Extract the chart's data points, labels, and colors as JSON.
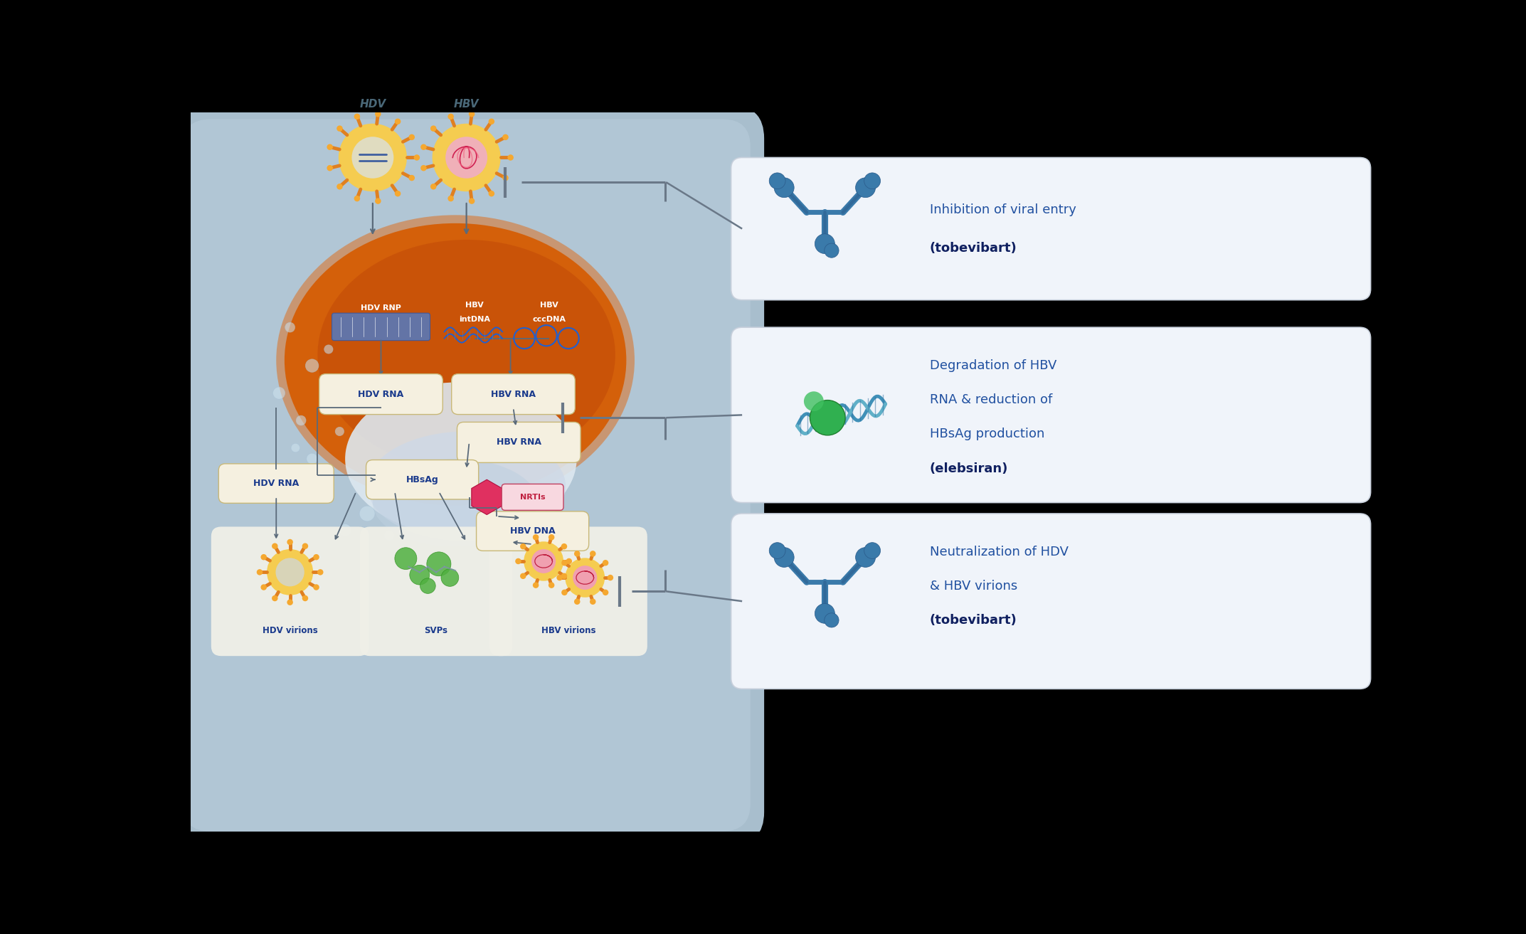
{
  "bg_color": "#000000",
  "cell_color": "#b8cfe0",
  "cell_inner_color": "#c5d8e8",
  "nucleus_color": "#d4600a",
  "nucleus_dark": "#c04808",
  "er_color": "#d8e8f0",
  "box_fill": "#f5f0e0",
  "box_edge": "#c8b878",
  "arrow_color": "#5a6a7a",
  "label_blue": "#1a3a8c",
  "label_gray": "#5a6880",
  "panel_fill": "#f0f4fa",
  "panel_edge": "#c8d0dc",
  "text_blue": "#2050a0",
  "text_bold_blue": "#102060",
  "hdv_label": "HDV",
  "hbv_label": "HBV",
  "hdv_rnp": "HDV RNP",
  "hbv_intdna_l1": "HBV",
  "hbv_intdna_l2": "intDNA",
  "hbv_cccdna_l1": "HBV",
  "hbv_cccdna_l2": "cccDNA",
  "hdv_rna": "HDV RNA",
  "hbv_rna": "HBV RNA",
  "hbv_rna2": "HBV RNA",
  "hbsag": "HBsAg",
  "hdv_rna_cyto": "HDV RNA",
  "hbv_dna": "HBV DNA",
  "nrtis": "NRTIs",
  "hdv_virions": "HDV virions",
  "svps": "SVPs",
  "hbv_virions": "HBV virions",
  "t1l1": "Inhibition of viral entry",
  "t1l2": "(tobevibart)",
  "t2l1": "Degradation of HBV",
  "t2l2": "RNA & reduction of",
  "t2l3": "HBsAg production",
  "t2l4": "(elebsiran)",
  "t3l1": "Neutralization of HDV",
  "t3l2": "& HBV virions",
  "t3l3": "(tobevibart)",
  "fig_w": 21.45,
  "fig_h": 13.13,
  "dpi": 100
}
